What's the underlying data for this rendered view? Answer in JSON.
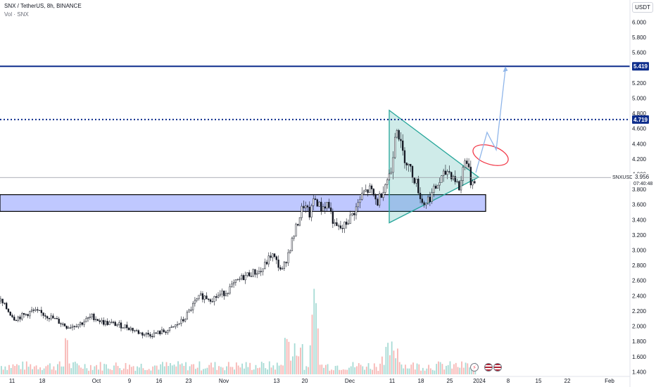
{
  "header": {
    "symbol_line": "SNX / TetherUS, 8h, BINANCE",
    "indicator_line": "Vol · SNX"
  },
  "currency_button": "USDT",
  "icons": {
    "events": [
      "lightning-icon",
      "us-flag-icon",
      "us-flag-icon"
    ]
  },
  "colors": {
    "up": "#26a69a",
    "down": "#ef5350",
    "accent": "#0d2d8c",
    "zone": "#bfc8ff",
    "triangle": "#26a69a",
    "ellipse": "#f23645",
    "arrow": "#90b6ea"
  },
  "chart_data": {
    "type": "candlestick",
    "symbol": "SNX / TetherUS",
    "interval": "8h",
    "exchange": "BINANCE",
    "y_ticks": [
      "6.000",
      "5.800",
      "5.600",
      "5.400",
      "5.200",
      "5.000",
      "4.800",
      "4.600",
      "4.400",
      "4.200",
      "4.000",
      "3.800",
      "3.600",
      "3.400",
      "3.200",
      "3.000",
      "2.800",
      "2.600",
      "2.400",
      "2.200",
      "2.000",
      "1.800",
      "1.600",
      "1.400"
    ],
    "ylim": [
      1.32,
      6.18
    ],
    "x_ticks": [
      "11",
      "18",
      "Oct",
      "9",
      "16",
      "23",
      "Nov",
      "13",
      "20",
      "Dec",
      "11",
      "18",
      "25",
      "2024",
      "8",
      "15",
      "22",
      "Feb"
    ],
    "price_path": [
      [
        0,
        2.33
      ],
      [
        10,
        2.21
      ],
      [
        20,
        2.1
      ],
      [
        35,
        2.15
      ],
      [
        45,
        2.2
      ],
      [
        60,
        2.16
      ],
      [
        75,
        2.1
      ],
      [
        95,
        1.99
      ],
      [
        115,
        2.04
      ],
      [
        130,
        2.13
      ],
      [
        145,
        2.05
      ],
      [
        160,
        2.03
      ],
      [
        180,
        1.99
      ],
      [
        200,
        1.9
      ],
      [
        215,
        1.89
      ],
      [
        240,
        1.95
      ],
      [
        260,
        2.08
      ],
      [
        275,
        2.3
      ],
      [
        285,
        2.4
      ],
      [
        300,
        2.36
      ],
      [
        320,
        2.45
      ],
      [
        340,
        2.62
      ],
      [
        355,
        2.7
      ],
      [
        370,
        2.72
      ],
      [
        385,
        2.95
      ],
      [
        400,
        2.72
      ],
      [
        410,
        3.0
      ],
      [
        420,
        3.3
      ],
      [
        430,
        3.6
      ],
      [
        440,
        3.45
      ],
      [
        445,
        3.7
      ],
      [
        455,
        3.55
      ],
      [
        465,
        3.62
      ],
      [
        475,
        3.3
      ],
      [
        485,
        3.28
      ],
      [
        495,
        3.4
      ],
      [
        505,
        3.55
      ],
      [
        515,
        3.75
      ],
      [
        525,
        3.8
      ],
      [
        535,
        3.62
      ],
      [
        545,
        3.85
      ],
      [
        555,
        4.05
      ],
      [
        562,
        4.7
      ],
      [
        570,
        4.3
      ],
      [
        580,
        4.1
      ],
      [
        590,
        3.9
      ],
      [
        600,
        3.6
      ],
      [
        610,
        3.7
      ],
      [
        620,
        3.85
      ],
      [
        635,
        4.05
      ],
      [
        645,
        3.95
      ],
      [
        652,
        3.8
      ],
      [
        660,
        4.25
      ],
      [
        668,
        3.9
      ],
      [
        676,
        3.96
      ]
    ],
    "candle_count": 245,
    "volume": "varied volume bars, peaks near Nov 20 and Dec 11",
    "last_price": "3.956",
    "last_price_label": "SNXUSDT",
    "countdown": "07:40:48",
    "levels": [
      {
        "price": 5.419,
        "label": "5.419",
        "style": "solid"
      },
      {
        "price": 4.719,
        "label": "4.719",
        "style": "dotted"
      }
    ],
    "support_zone": [
      3.51,
      3.73
    ],
    "triangle": {
      "top": 4.84,
      "bottom": 3.36,
      "apex": 3.96
    },
    "projection": [
      4.02,
      4.55,
      4.32,
      5.38
    ]
  }
}
